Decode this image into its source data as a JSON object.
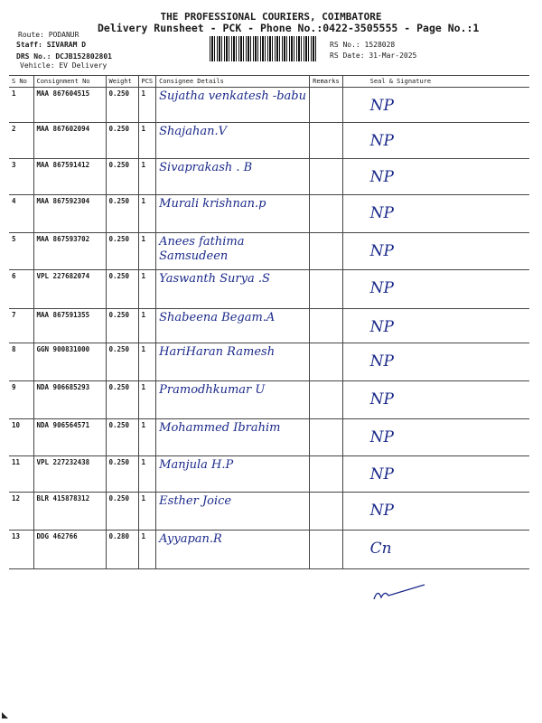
{
  "header": {
    "title": "THE PROFESSIONAL COURIERS, COIMBATORE",
    "subtitle": "Delivery Runsheet - PCK - Phone No.:0422-3505555 - Page No.:1",
    "route": "Route: PODANUR",
    "staff": "Staff: SIVARAM D",
    "drs": "DRS No.: DCJB152802801",
    "vehicle": "Vehicle: EV Delivery",
    "rs_no": "RS No.: 1528028",
    "rs_date": "RS Date: 31-Mar-2025"
  },
  "columns": [
    "S No",
    "Consignment No",
    "Weight",
    "PCS",
    "Consignee Details",
    "Remarks",
    "Seal & Signature"
  ],
  "rows": [
    {
      "sno": "1",
      "cn": "MAA 867604515",
      "wt": "0.250",
      "pcs": "1",
      "name": "Sujatha venkatesh -babu",
      "sig": "NP"
    },
    {
      "sno": "2",
      "cn": "MAA 867602094",
      "wt": "0.250",
      "pcs": "1",
      "name": "Shajahan.V",
      "sig": "NP"
    },
    {
      "sno": "3",
      "cn": "MAA 867591412",
      "wt": "0.250",
      "pcs": "1",
      "name": "Sivaprakash . B",
      "sig": "NP"
    },
    {
      "sno": "4",
      "cn": "MAA 867592304",
      "wt": "0.250",
      "pcs": "1",
      "name": "Murali krishnan.p",
      "sig": "NP"
    },
    {
      "sno": "5",
      "cn": "MAA 867593702",
      "wt": "0.250",
      "pcs": "1",
      "name": "Anees fathima Samsudeen",
      "sig": "NP"
    },
    {
      "sno": "6",
      "cn": "VPL 227682074",
      "wt": "0.250",
      "pcs": "1",
      "name": "Yaswanth Surya .S",
      "sig": "NP"
    },
    {
      "sno": "7",
      "cn": "MAA 867591355",
      "wt": "0.250",
      "pcs": "1",
      "name": "Shabeena Begam.A",
      "sig": "NP"
    },
    {
      "sno": "8",
      "cn": "GGN 900831000",
      "wt": "0.250",
      "pcs": "1",
      "name": "HariHaran Ramesh",
      "sig": "NP"
    },
    {
      "sno": "9",
      "cn": "NDA 906685293",
      "wt": "0.250",
      "pcs": "1",
      "name": "Pramodhkumar U",
      "sig": "NP"
    },
    {
      "sno": "10",
      "cn": "NDA 906564571",
      "wt": "0.250",
      "pcs": "1",
      "name": "Mohammed Ibrahim",
      "sig": "NP"
    },
    {
      "sno": "11",
      "cn": "VPL 227232438",
      "wt": "0.250",
      "pcs": "1",
      "name": "Manjula H.P",
      "sig": "NP"
    },
    {
      "sno": "12",
      "cn": "BLR 415878312",
      "wt": "0.250",
      "pcs": "1",
      "name": "Esther Joice",
      "sig": "NP"
    },
    {
      "sno": "13",
      "cn": "DDG 462766",
      "wt": "0.280",
      "pcs": "1",
      "name": "Ayyapan.R",
      "sig": "Cn"
    }
  ]
}
